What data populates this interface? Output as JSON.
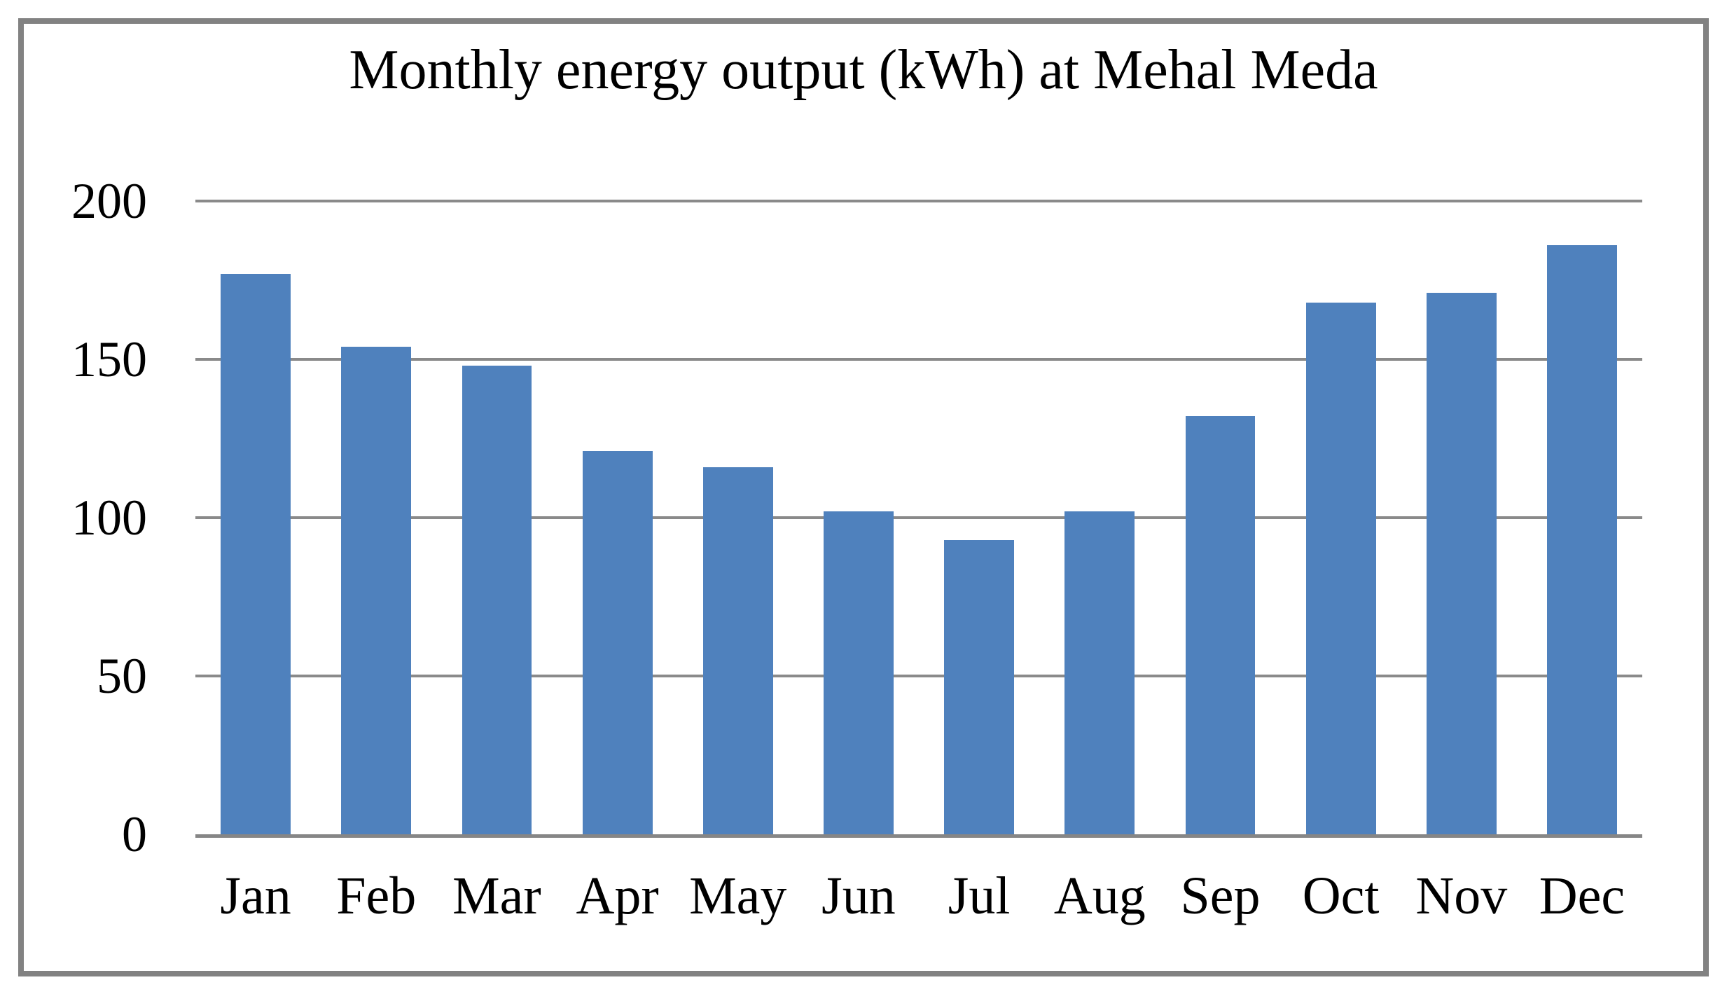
{
  "window": {
    "background_color": "#ffffff",
    "frame_color": "#828282"
  },
  "chart_data": {
    "type": "bar",
    "title": "Monthly energy output (kWh) at Mehal Meda",
    "categories": [
      "Jan",
      "Feb",
      "Mar",
      "Apr",
      "May",
      "Jun",
      "Jul",
      "Aug",
      "Sep",
      "Oct",
      "Nov",
      "Dec"
    ],
    "values": [
      177,
      154,
      148,
      121,
      116,
      102,
      93,
      102,
      132,
      168,
      171,
      186
    ],
    "xlabel": "",
    "ylabel": "",
    "ylim": [
      0,
      200
    ],
    "yticks": [
      0,
      50,
      100,
      150,
      200
    ],
    "grid": true,
    "legend": false,
    "bar_color": "#4F81BD",
    "gridline_color": "#8a8a8a",
    "axis_color": "#868686",
    "text_color": "#000000"
  }
}
